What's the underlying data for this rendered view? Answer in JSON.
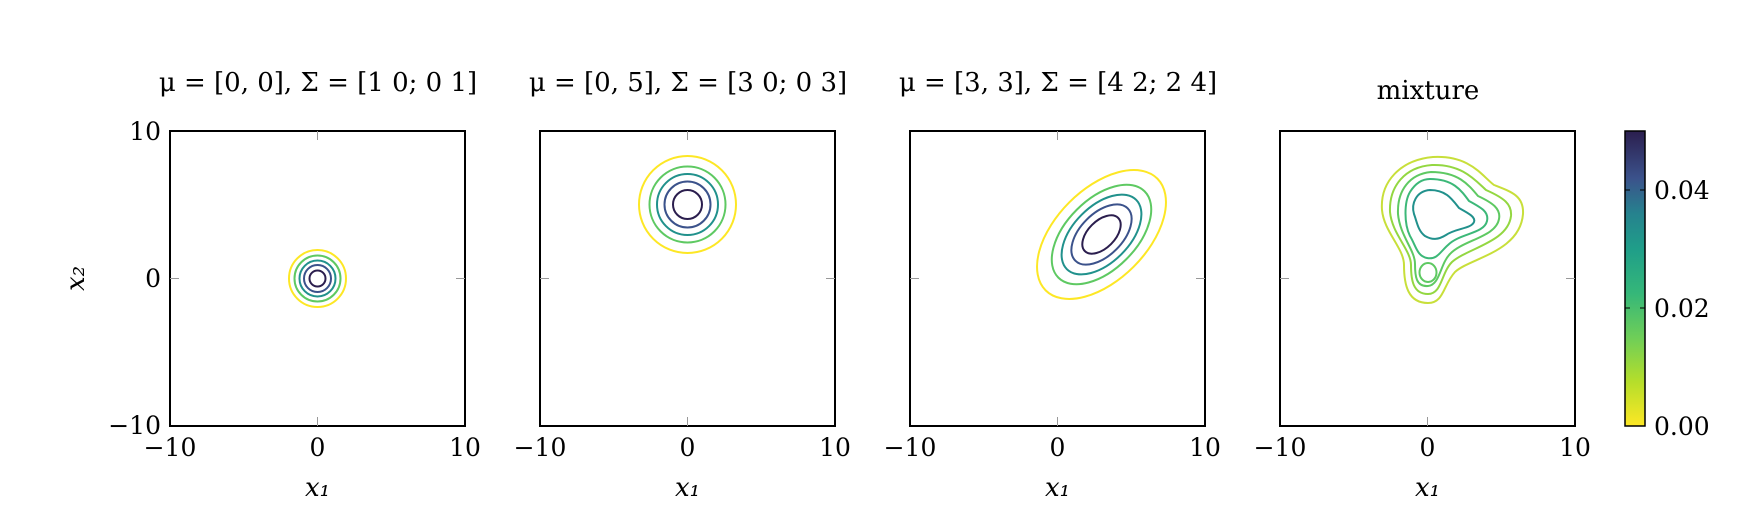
{
  "chart_data": [
    {
      "type": "contour",
      "title": "μ = [0, 0], Σ = [1 0; 0 1]",
      "mu": [
        0,
        0
      ],
      "sigma": [
        [
          1,
          0
        ],
        [
          0,
          1
        ]
      ],
      "xlim": [
        -10,
        10
      ],
      "ylim": [
        -10,
        10
      ],
      "xticks": [
        "−10",
        "0",
        "10"
      ],
      "yticks": [
        "10",
        "0",
        "−10"
      ],
      "xlabel": "x₁",
      "ylabel": "x₂"
    },
    {
      "type": "contour",
      "title": "μ = [0, 5], Σ = [3 0; 0 3]",
      "mu": [
        0,
        5
      ],
      "sigma": [
        [
          3,
          0
        ],
        [
          0,
          3
        ]
      ],
      "xlim": [
        -10,
        10
      ],
      "ylim": [
        -10,
        10
      ],
      "xticks": [
        "−10",
        "0",
        "10"
      ],
      "xlabel": "x₁"
    },
    {
      "type": "contour",
      "title": "μ = [3, 3], Σ = [4 2; 2 4]",
      "mu": [
        3,
        3
      ],
      "sigma": [
        [
          4,
          2
        ],
        [
          2,
          4
        ]
      ],
      "xlim": [
        -10,
        10
      ],
      "ylim": [
        -10,
        10
      ],
      "xticks": [
        "−10",
        "0",
        "10"
      ],
      "xlabel": "x₁"
    },
    {
      "type": "contour",
      "title": "mixture",
      "xlim": [
        -10,
        10
      ],
      "ylim": [
        -10,
        10
      ],
      "xticks": [
        "−10",
        "0",
        "10"
      ],
      "xlabel": "x₁"
    }
  ],
  "colorbar": {
    "range": [
      0,
      0.05
    ],
    "ticks": [
      "0.00",
      "0.02",
      "0.04"
    ],
    "tick_values": [
      0,
      0.02,
      0.04
    ],
    "colormap": [
      "#fde725",
      "#5ec962",
      "#21918c",
      "#3b528b",
      "#2b1e4e"
    ]
  }
}
